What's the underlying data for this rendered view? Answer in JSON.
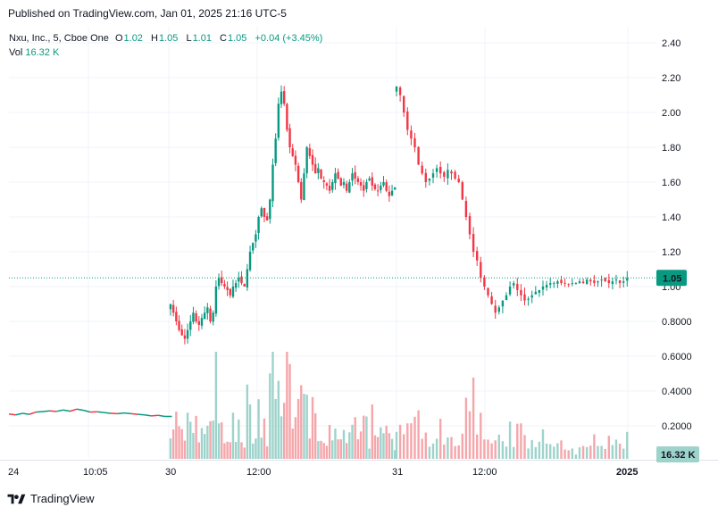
{
  "header": {
    "published": "Published on TradingView.com, Jan 01, 2025 21:16 UTC-5"
  },
  "legend": {
    "symbol": "Nxu, Inc., 5, Cboe One",
    "open_key": "O",
    "open": "1.02",
    "high_key": "H",
    "high": "1.05",
    "low_key": "L",
    "low": "1.01",
    "close_key": "C",
    "close": "1.05",
    "change": "+0.04 (+3.45%)",
    "vol_key": "Vol",
    "vol": "16.32 K"
  },
  "footer": {
    "brand": "TradingView"
  },
  "chart_data": {
    "type": "candlestick",
    "price_axis": {
      "ticks": [
        "2.40",
        "2.20",
        "2.00",
        "1.80",
        "1.60",
        "1.40",
        "1.20",
        "1.00",
        "0.8000",
        "0.6000",
        "0.4000",
        "0.2000"
      ],
      "tick_values": [
        2.4,
        2.2,
        2.0,
        1.8,
        1.6,
        1.4,
        1.2,
        1.0,
        0.8,
        0.6,
        0.4,
        0.2
      ],
      "range": [
        0.0,
        2.45
      ],
      "last_price_label": "1.05",
      "last_price": 1.05,
      "volume_label": "16.32 K"
    },
    "time_axis": {
      "ticks": [
        "24",
        "10:05",
        "30",
        "12:00",
        "31",
        "12:00",
        "2025"
      ]
    },
    "grid": true,
    "colors": {
      "up": "#089981",
      "down": "#F23645",
      "up_vol": "#9ED3CB",
      "down_vol": "#F5A6AB",
      "last_price": "#089981"
    },
    "prior_session_close": [
      0.268,
      0.263,
      0.272,
      0.266,
      0.279,
      0.282,
      0.286,
      0.283,
      0.291,
      0.284,
      0.296,
      0.289,
      0.279,
      0.281,
      0.276,
      0.272,
      0.27,
      0.274,
      0.27,
      0.266,
      0.263,
      0.257,
      0.26,
      0.254
    ],
    "session_30_close": [
      0.9,
      0.85,
      0.8,
      0.75,
      0.72,
      0.7,
      0.75,
      0.8,
      0.85,
      0.8,
      0.78,
      0.82,
      0.85,
      0.88,
      0.8,
      0.85,
      1.0,
      1.05,
      1.02,
      1.0,
      0.98,
      0.95,
      1.0,
      1.02,
      1.05,
      1.02,
      1.0,
      1.1,
      1.2,
      1.25,
      1.3,
      1.4,
      1.45,
      1.4,
      1.38,
      1.5,
      1.7,
      1.85,
      2.05,
      2.12,
      2.05,
      1.9,
      1.8,
      1.75,
      1.7,
      1.6,
      1.5,
      1.65,
      1.8,
      1.75,
      1.7,
      1.65,
      1.68,
      1.62,
      1.6,
      1.58,
      1.55,
      1.6,
      1.65,
      1.62,
      1.58,
      1.6,
      1.55,
      1.6,
      1.65,
      1.62,
      1.6,
      1.58,
      1.55,
      1.6,
      1.62,
      1.58,
      1.56,
      1.55,
      1.58,
      1.6,
      1.55,
      1.52,
      1.55,
      1.57
    ],
    "session_31_close": [
      2.15,
      2.1,
      2.0,
      1.9,
      1.85,
      1.8,
      1.7,
      1.65,
      1.6,
      1.62,
      1.65,
      1.68,
      1.65,
      1.63,
      1.67,
      1.65,
      1.62,
      1.6,
      1.5,
      1.4,
      1.3,
      1.2,
      1.15,
      1.05,
      1.0,
      0.95,
      0.9,
      0.85,
      0.88,
      0.92,
      0.95,
      1.0,
      1.02,
      0.98,
      0.95,
      0.92,
      0.93,
      0.95,
      0.97,
      0.98,
      1.0,
      1.01,
      1.02,
      1.02,
      1.03,
      1.02,
      1.02,
      1.01,
      1.02,
      1.02,
      1.03,
      1.02,
      1.04,
      1.03,
      1.02,
      1.03,
      1.04,
      1.03,
      1.02,
      1.03,
      1.04,
      1.02,
      1.03,
      1.05
    ]
  }
}
